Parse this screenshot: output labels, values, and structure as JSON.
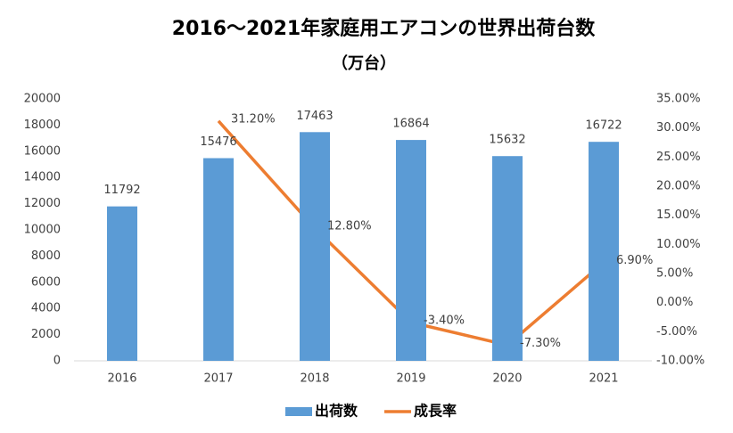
{
  "chart_data": {
    "type": "bar",
    "title": "2016～2021年家庭用エアコンの世界出荷台数",
    "subtitle": "（万台）",
    "categories": [
      "2016",
      "2017",
      "2018",
      "2019",
      "2020",
      "2021"
    ],
    "series": [
      {
        "name": "出荷数",
        "color": "#5b9bd5",
        "type": "bar",
        "values": [
          11792,
          15476,
          17463,
          16864,
          15632,
          16722
        ]
      },
      {
        "name": "成長率",
        "color": "#ed7d31",
        "type": "line",
        "axis": "y2",
        "values": [
          null,
          31.2,
          12.8,
          -3.4,
          -7.3,
          6.9
        ],
        "value_labels": [
          null,
          "31.20%",
          "12.80%",
          "-3.40%",
          "-7.30%",
          "6.90%"
        ]
      }
    ],
    "ylim": [
      0,
      20000
    ],
    "yticks": [
      0,
      2000,
      4000,
      6000,
      8000,
      10000,
      12000,
      14000,
      16000,
      18000,
      20000
    ],
    "y2lim": [
      -10,
      35
    ],
    "y2ticks": [
      {
        "value": -10,
        "label": "-10.00%"
      },
      {
        "value": -5,
        "label": "-5.00%"
      },
      {
        "value": 0,
        "label": "0.00%"
      },
      {
        "value": 5,
        "label": "5.00%"
      },
      {
        "value": 10,
        "label": "10.00%"
      },
      {
        "value": 15,
        "label": "15.00%"
      },
      {
        "value": 20,
        "label": "20.00%"
      },
      {
        "value": 25,
        "label": "25.00%"
      },
      {
        "value": 30,
        "label": "30.00%"
      },
      {
        "value": 35,
        "label": "35.00%"
      }
    ],
    "grid": false,
    "legend": "bottom"
  }
}
